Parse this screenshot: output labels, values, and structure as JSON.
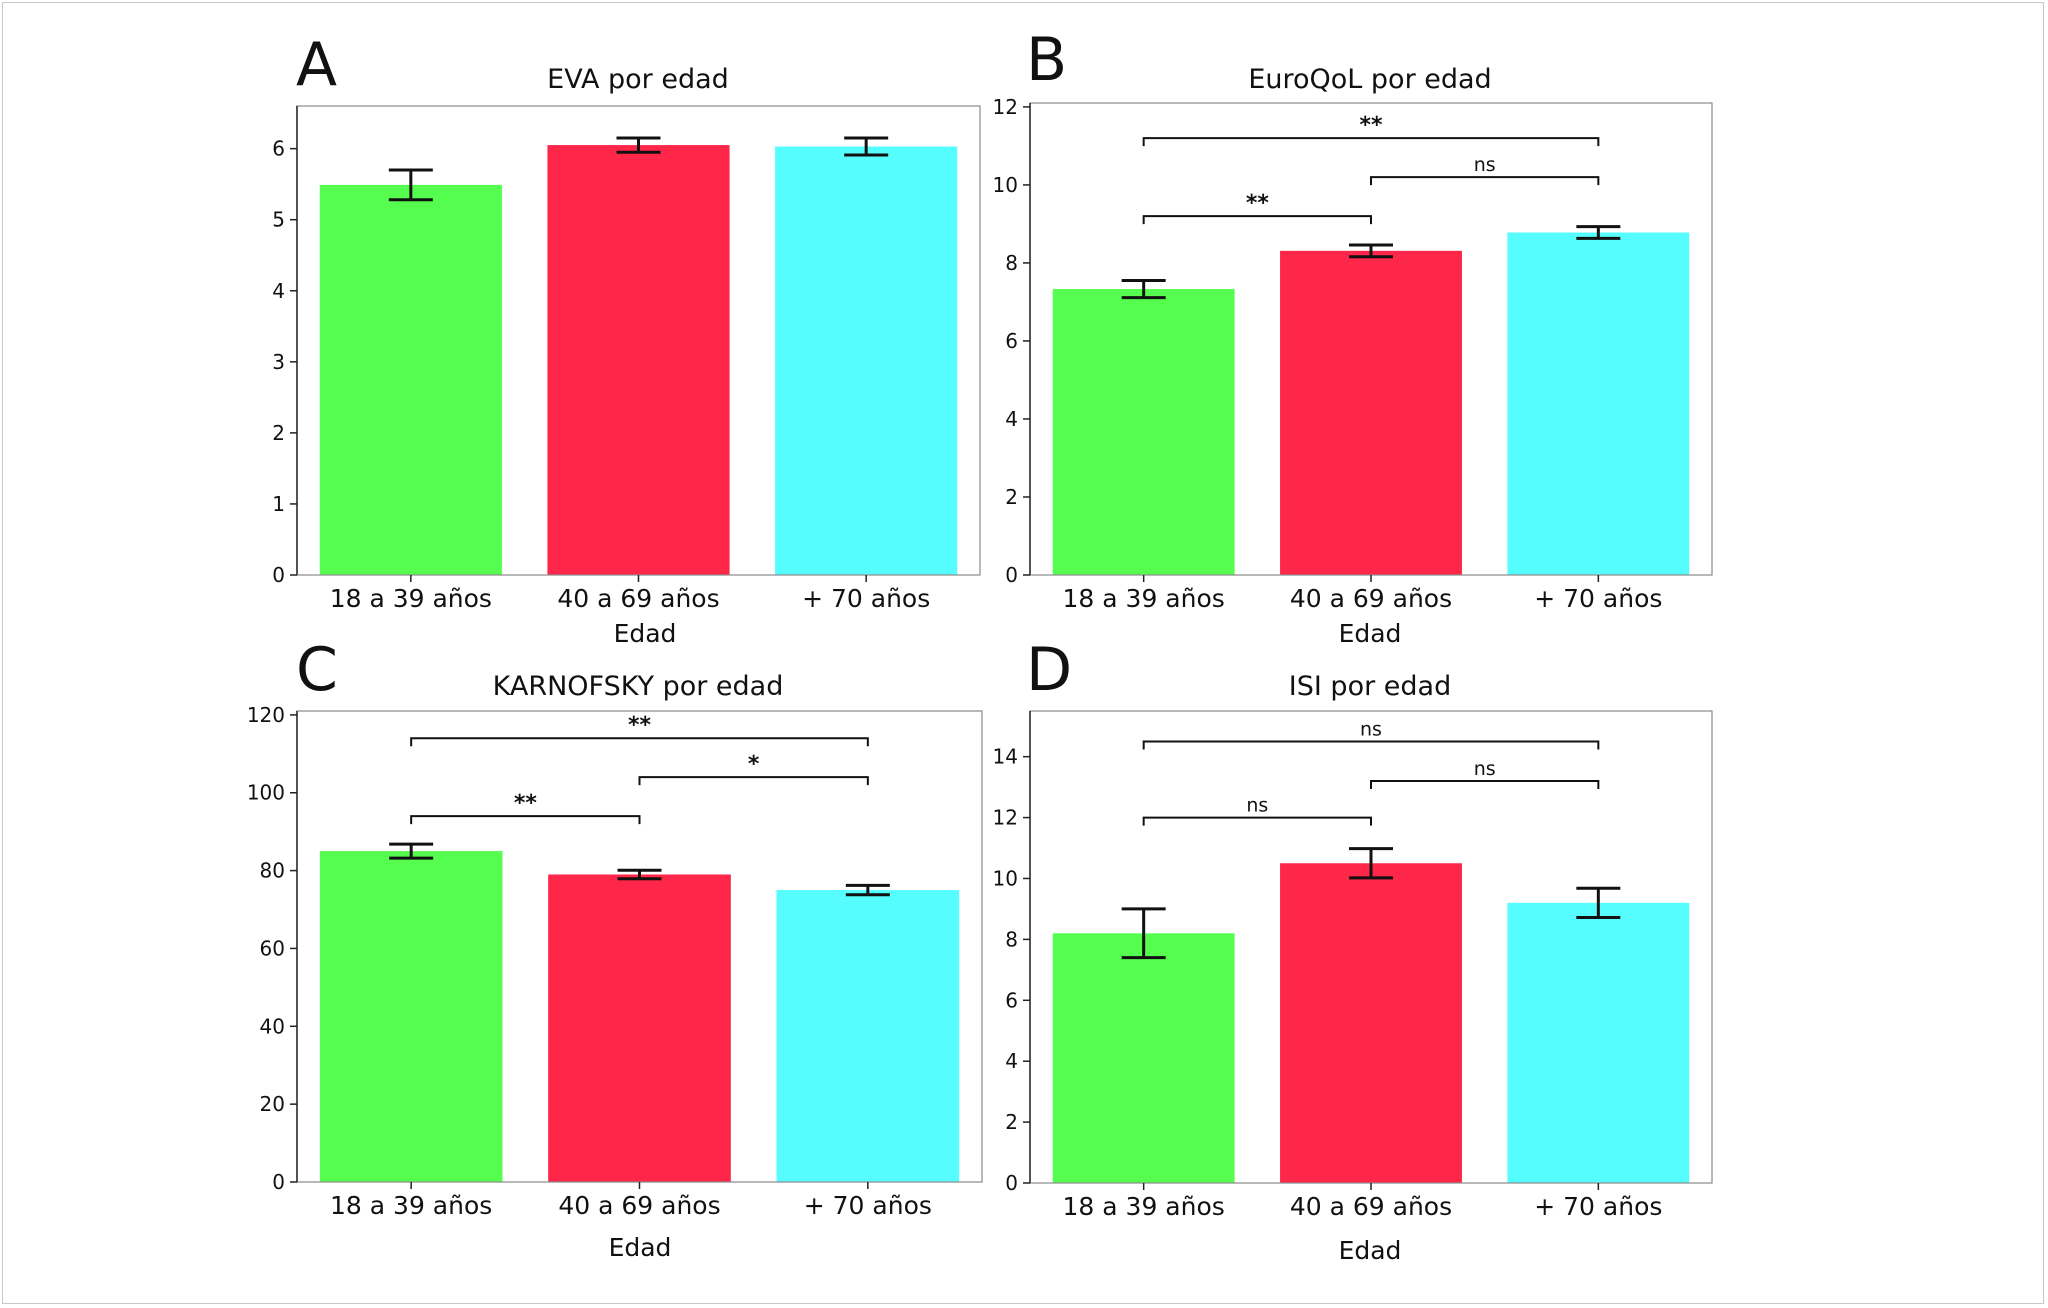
{
  "chart_data": [
    {
      "panel": "A",
      "type": "bar",
      "title": "EVA por edad",
      "xlabel": "Edad",
      "ylabel": "",
      "categories": [
        "18 a 39 años",
        "40 a 69 años",
        "+ 70 años"
      ],
      "values": [
        5.49,
        6.05,
        6.03
      ],
      "errors": [
        0.21,
        0.1,
        0.12
      ],
      "colors": [
        "#55fd4f",
        "#fe2649",
        "#55fdfe"
      ],
      "ylim": [
        0,
        6.6
      ],
      "yticks": [
        0,
        1,
        2,
        3,
        4,
        5,
        6
      ],
      "significance": []
    },
    {
      "panel": "B",
      "type": "bar",
      "title": "EuroQoL por edad",
      "xlabel": "Edad",
      "ylabel": "",
      "categories": [
        "18 a 39 años",
        "40 a 69 años",
        "+ 70 años"
      ],
      "values": [
        7.33,
        8.31,
        8.78
      ],
      "errors": [
        0.22,
        0.15,
        0.15
      ],
      "colors": [
        "#55fd4f",
        "#fe2649",
        "#55fdfe"
      ],
      "ylim": [
        0,
        12.1
      ],
      "yticks": [
        0,
        2,
        4,
        6,
        8,
        10,
        12
      ],
      "significance": [
        {
          "from": 0,
          "to": 1,
          "label": "**",
          "y": 9.2
        },
        {
          "from": 1,
          "to": 2,
          "label": "ns",
          "y": 10.2
        },
        {
          "from": 0,
          "to": 2,
          "label": "**",
          "y": 11.2
        }
      ]
    },
    {
      "panel": "C",
      "type": "bar",
      "title": "KARNOFSKY por edad",
      "xlabel": "Edad",
      "ylabel": "",
      "categories": [
        "18 a 39 años",
        "40 a 69 años",
        "+ 70 años"
      ],
      "values": [
        85,
        79,
        75
      ],
      "errors": [
        1.8,
        1.1,
        1.2
      ],
      "colors": [
        "#55fd4f",
        "#fe2649",
        "#55fdfe"
      ],
      "ylim": [
        0,
        121
      ],
      "yticks": [
        0,
        20,
        40,
        60,
        80,
        100,
        120
      ],
      "significance": [
        {
          "from": 0,
          "to": 1,
          "label": "**",
          "y": 94
        },
        {
          "from": 1,
          "to": 2,
          "label": "*",
          "y": 104
        },
        {
          "from": 0,
          "to": 2,
          "label": "**",
          "y": 114
        }
      ]
    },
    {
      "panel": "D",
      "type": "bar",
      "title": "ISI por edad",
      "xlabel": "Edad",
      "ylabel": "",
      "categories": [
        "18 a 39 años",
        "40 a 69 años",
        "+ 70 años"
      ],
      "values": [
        8.2,
        10.5,
        9.2
      ],
      "errors": [
        0.8,
        0.48,
        0.48
      ],
      "colors": [
        "#55fd4f",
        "#fe2649",
        "#55fdfe"
      ],
      "ylim": [
        0,
        15.5
      ],
      "yticks": [
        0,
        2,
        4,
        6,
        8,
        10,
        12,
        14
      ],
      "significance": [
        {
          "from": 0,
          "to": 1,
          "label": "ns",
          "y": 12
        },
        {
          "from": 1,
          "to": 2,
          "label": "ns",
          "y": 13.2
        },
        {
          "from": 0,
          "to": 2,
          "label": "ns",
          "y": 14.5
        }
      ]
    }
  ]
}
